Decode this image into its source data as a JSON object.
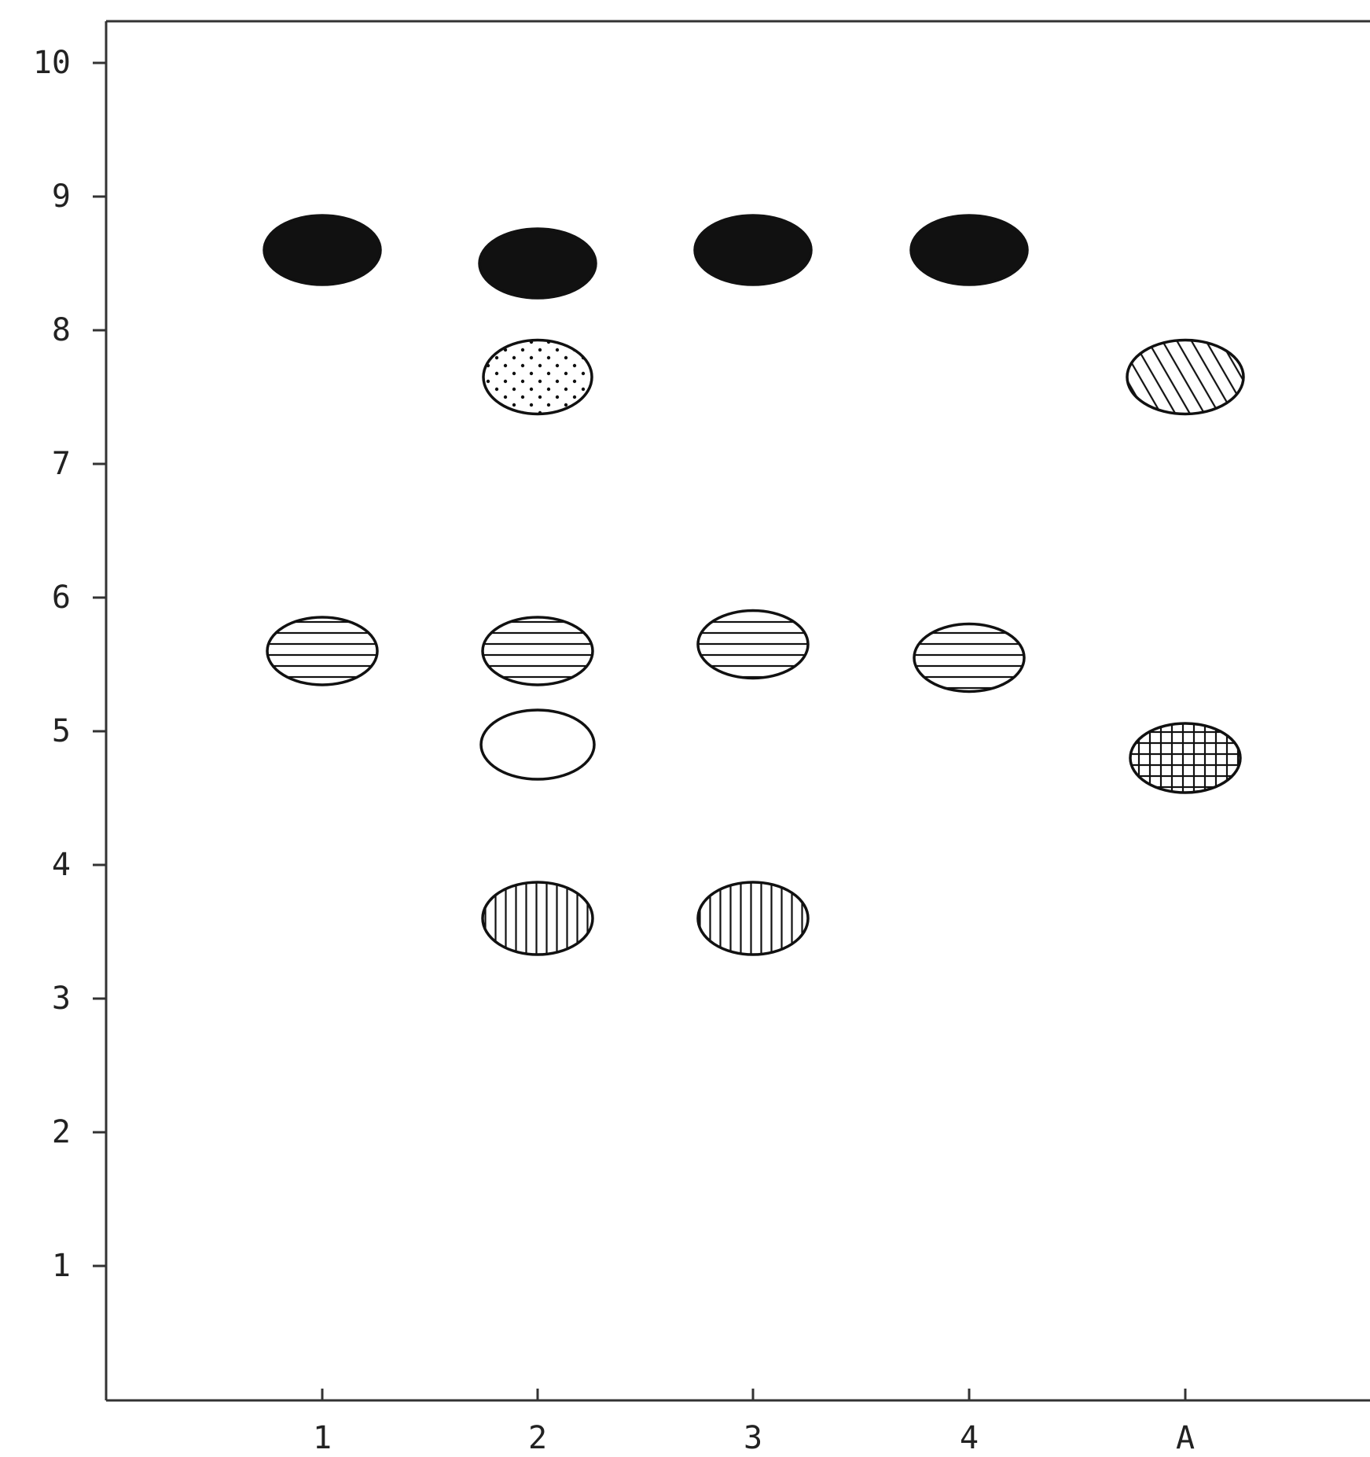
{
  "chart_data": {
    "type": "scatter",
    "title": "",
    "xlabel": "",
    "ylabel": "",
    "categories": [
      "1",
      "2",
      "3",
      "4",
      "A"
    ],
    "y_ticks": [
      "1",
      "2",
      "3",
      "4",
      "5",
      "6",
      "7",
      "8",
      "9",
      "10"
    ],
    "ylim": [
      0,
      10.3
    ],
    "grid": false,
    "legend": "none",
    "colors": {
      "ink": "#111111",
      "background": "#ffffff",
      "frame": "#333333"
    },
    "spots": [
      {
        "lane": "1",
        "y": 8.6,
        "pattern": "solid"
      },
      {
        "lane": "1",
        "y": 5.6,
        "pattern": "horizontal-lines"
      },
      {
        "lane": "2",
        "y": 8.5,
        "pattern": "solid"
      },
      {
        "lane": "2",
        "y": 7.65,
        "pattern": "dotted"
      },
      {
        "lane": "2",
        "y": 5.6,
        "pattern": "horizontal-lines"
      },
      {
        "lane": "2",
        "y": 4.9,
        "pattern": "open"
      },
      {
        "lane": "2",
        "y": 3.6,
        "pattern": "vertical-lines"
      },
      {
        "lane": "3",
        "y": 8.6,
        "pattern": "solid"
      },
      {
        "lane": "3",
        "y": 5.65,
        "pattern": "horizontal-lines"
      },
      {
        "lane": "3",
        "y": 3.6,
        "pattern": "vertical-lines"
      },
      {
        "lane": "4",
        "y": 8.6,
        "pattern": "solid"
      },
      {
        "lane": "4",
        "y": 5.55,
        "pattern": "horizontal-lines"
      },
      {
        "lane": "A",
        "y": 7.65,
        "pattern": "diagonal-lines"
      },
      {
        "lane": "A",
        "y": 4.8,
        "pattern": "crosshatch"
      }
    ]
  }
}
